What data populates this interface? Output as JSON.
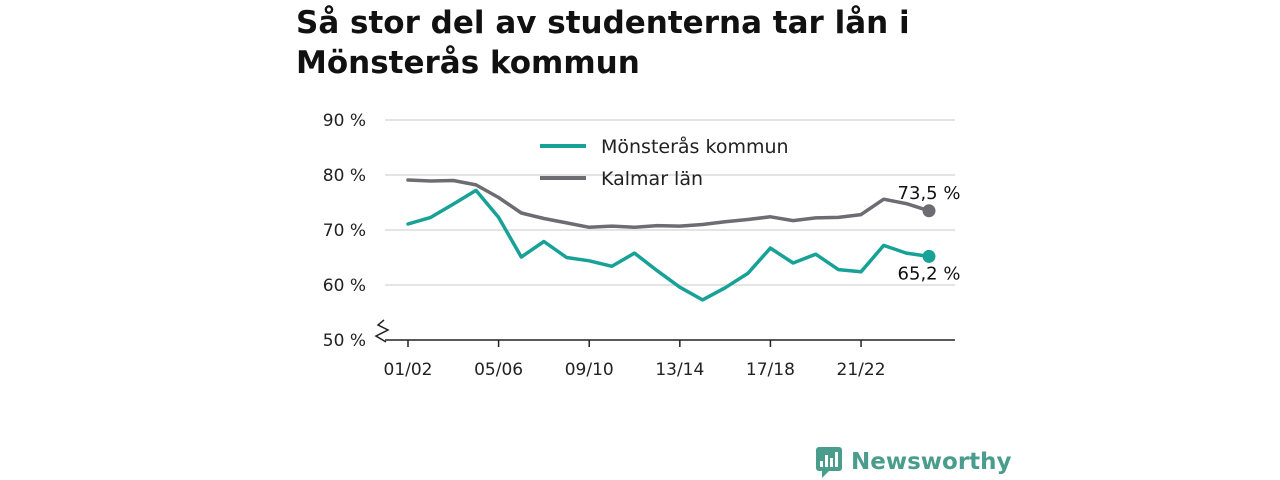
{
  "title_lines": [
    "Så stor del av studenterna tar lån i",
    "Mönsterås kommun"
  ],
  "brand": {
    "name": "Newsworthy",
    "color": "#4a9c8c",
    "icon": "bar-chart-speech-icon"
  },
  "chart_data": {
    "type": "line",
    "ylim": [
      50,
      90
    ],
    "y_ticks": [
      {
        "value": 50,
        "label": "50 %"
      },
      {
        "value": 60,
        "label": "60 %"
      },
      {
        "value": 70,
        "label": "70 %"
      },
      {
        "value": 80,
        "label": "80 %"
      },
      {
        "value": 90,
        "label": "90 %"
      }
    ],
    "axis_break": true,
    "x": [
      "01/02",
      "02/03",
      "03/04",
      "04/05",
      "05/06",
      "06/07",
      "07/08",
      "08/09",
      "09/10",
      "10/11",
      "11/12",
      "12/13",
      "13/14",
      "14/15",
      "15/16",
      "16/17",
      "17/18",
      "18/19",
      "19/20",
      "20/21",
      "21/22",
      "22/23",
      "23/24",
      "24/25"
    ],
    "x_tick_labels": [
      "01/02",
      "05/06",
      "09/10",
      "13/14",
      "17/18",
      "21/22"
    ],
    "grid": true,
    "legend_position": "top-center",
    "series": [
      {
        "name": "Mönsterås kommun",
        "color": "#17a197",
        "end_label": "65,2 %",
        "values": [
          71.1,
          72.3,
          74.7,
          77.2,
          72.3,
          65.1,
          67.9,
          65.0,
          64.4,
          63.4,
          65.8,
          62.6,
          59.6,
          57.3,
          59.5,
          62.1,
          66.7,
          64.0,
          65.6,
          62.8,
          62.4,
          67.2,
          65.8,
          65.2
        ]
      },
      {
        "name": "Kalmar län",
        "color": "#6d6c73",
        "end_label": "73,5 %",
        "values": [
          79.1,
          78.9,
          79.0,
          78.2,
          75.9,
          73.1,
          72.1,
          71.3,
          70.5,
          70.7,
          70.5,
          70.8,
          70.7,
          71.0,
          71.5,
          71.9,
          72.4,
          71.7,
          72.2,
          72.3,
          72.8,
          75.6,
          74.8,
          73.5
        ]
      }
    ]
  }
}
